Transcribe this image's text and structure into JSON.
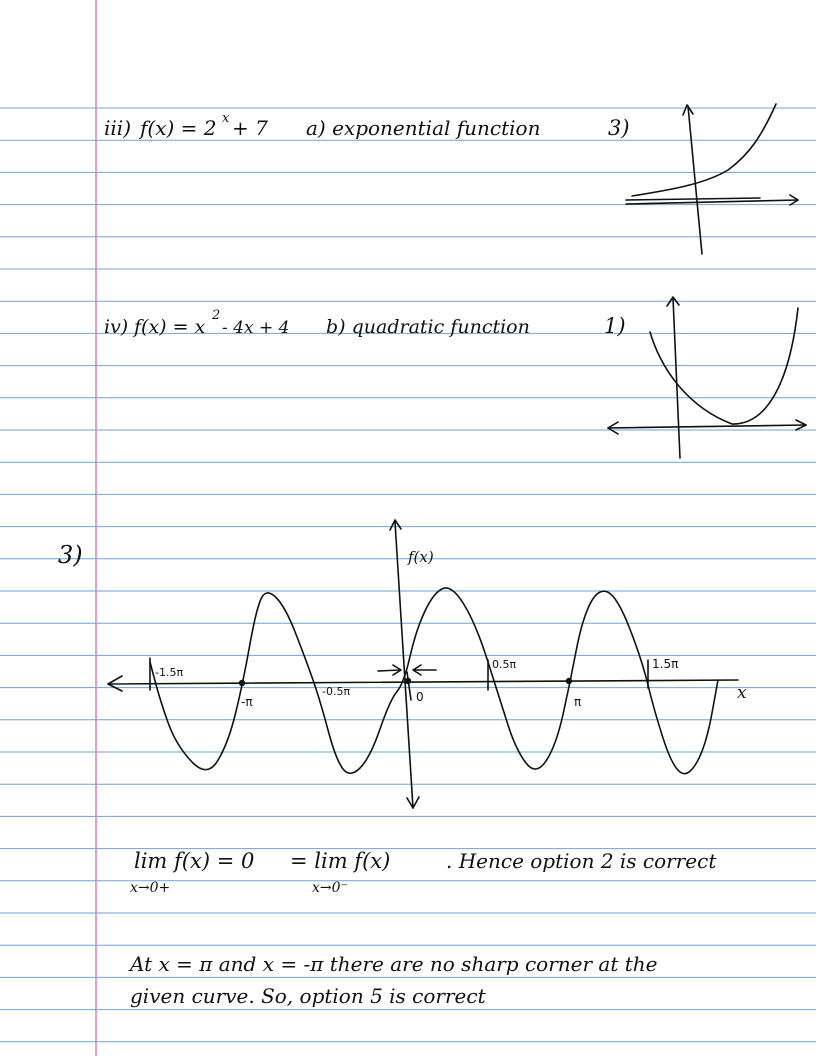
{
  "paper": {
    "rule_color": "#6fa3d8",
    "margin_color": "#e079c8",
    "ink_color": "#111111"
  },
  "row_iii": {
    "label": "iii)",
    "formula": "f(x) = 2",
    "exponent": "x",
    "formula_tail": "+ 7",
    "match": "a) exponential function",
    "graph_no": "3)"
  },
  "row_iv": {
    "label": "iv)",
    "formula": "f(x) = x",
    "exponent": "2",
    "formula_tail": "- 4x + 4",
    "match": "b) quadratic function",
    "graph_no": "1)"
  },
  "q3": {
    "number": "3)",
    "graph": {
      "y_axis_label": "f(x)",
      "x_axis_label": "x",
      "labels": {
        "neg_1_5pi": "-1.5π",
        "neg_pi": "-π",
        "neg_0_5pi": "-0.5π",
        "zero": "0",
        "pos_0_5pi": "0.5π",
        "pos_pi": "π",
        "pos_1_5pi": "1.5π"
      }
    },
    "limit_left": "lim f(x) = 0",
    "limit_left_sub": "x→0+",
    "limit_right": "= lim f(x)",
    "limit_right_sub": "x→0⁻",
    "limit_conclusion": ". Hence option 2 is correct",
    "corners_line1": "At x = π  and  x = -π  there are no sharp corner at the",
    "corners_line2": "given curve. So, option 5 is correct"
  }
}
